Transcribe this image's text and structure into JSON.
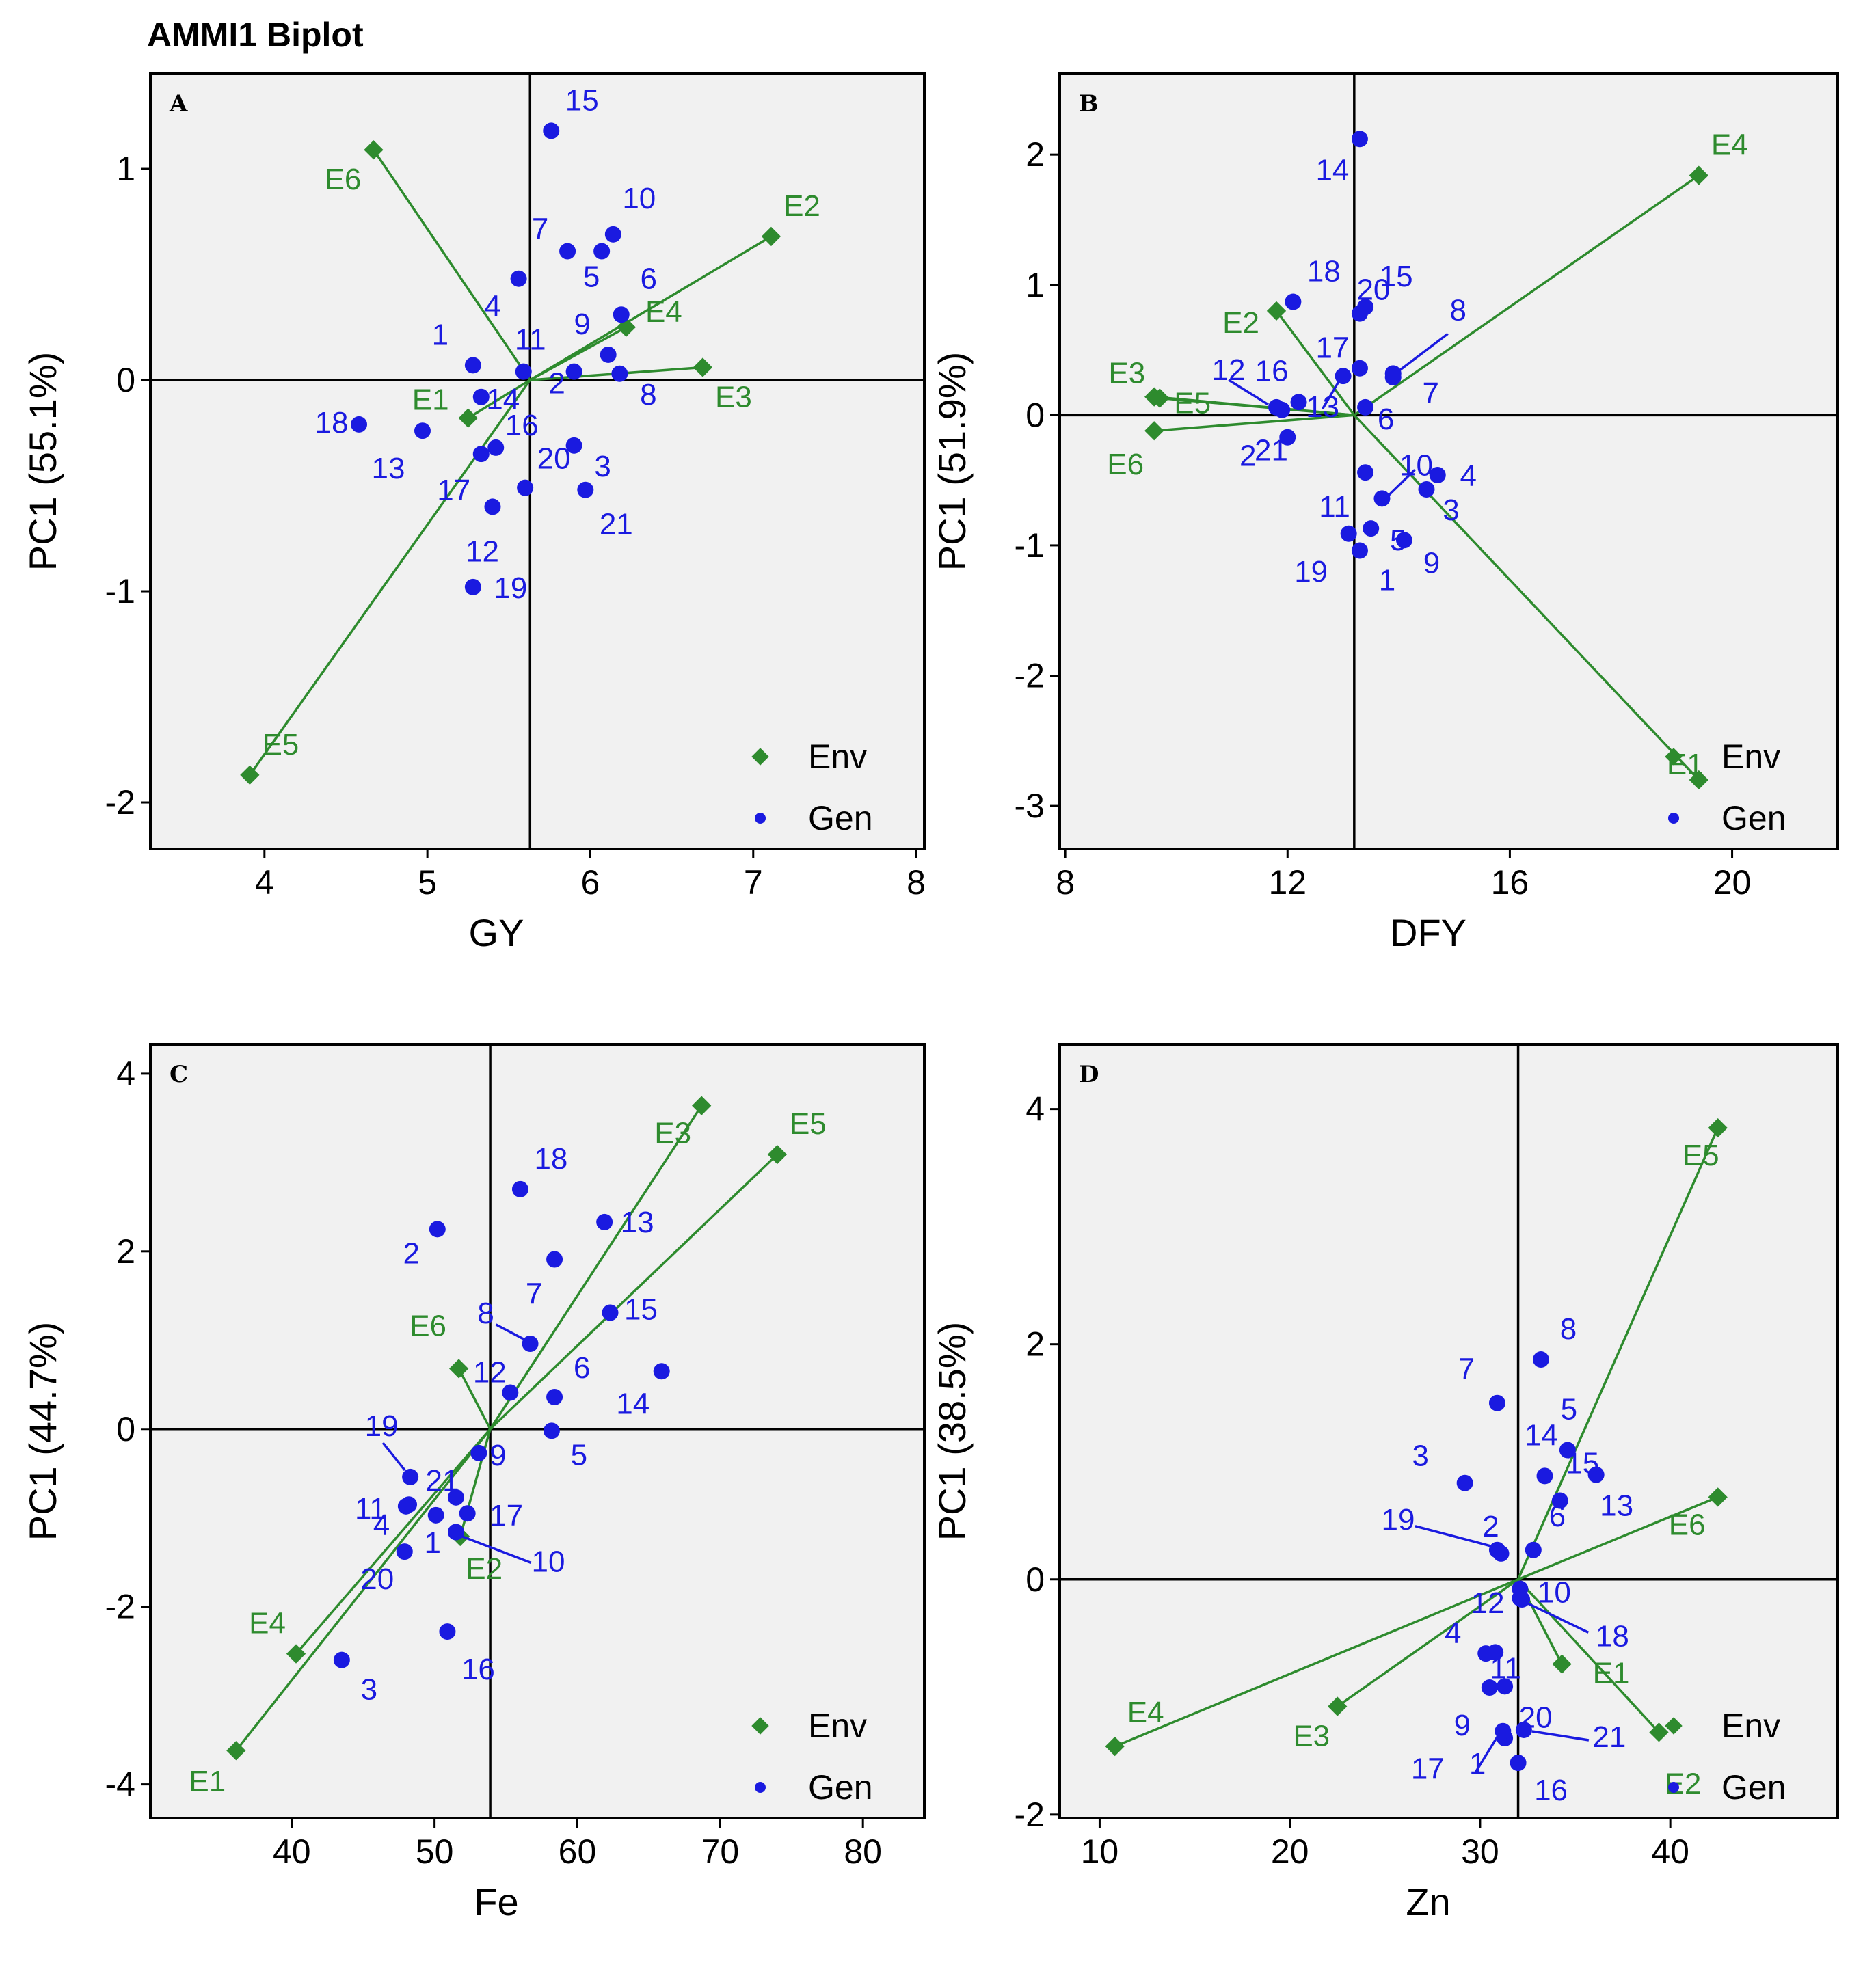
{
  "figure_title": "AMMI1 Biplot",
  "colors": {
    "env": "#2e8b2e",
    "gen": "#1a1ae0",
    "panel_background": "#f1f1f1"
  },
  "chart_data": [
    {
      "type": "scatter",
      "panel": "A",
      "xlabel": "GY",
      "ylabel": "PC1 (55.1%)",
      "xlim": [
        3.3,
        8.05
      ],
      "ylim": [
        -2.22,
        1.45
      ],
      "xticks": [
        4,
        5,
        6,
        7,
        8
      ],
      "yticks": [
        1,
        0,
        -1,
        -2
      ],
      "vline": 5.63,
      "hline": 0,
      "legend": [
        "Env",
        "Gen"
      ],
      "legend_position": "bottom-right",
      "env": [
        {
          "label": "E1",
          "x": 5.25,
          "y": -0.18
        },
        {
          "label": "E2",
          "x": 7.11,
          "y": 0.68
        },
        {
          "label": "E3",
          "x": 6.69,
          "y": 0.06
        },
        {
          "label": "E4",
          "x": 6.22,
          "y": 0.25
        },
        {
          "label": "E5",
          "x": 3.91,
          "y": -1.87
        },
        {
          "label": "E6",
          "x": 4.67,
          "y": 1.09
        }
      ],
      "gen": [
        {
          "label": "1",
          "x": 5.28,
          "y": 0.07
        },
        {
          "label": "2",
          "x": 5.9,
          "y": 0.04
        },
        {
          "label": "3",
          "x": 5.9,
          "y": -0.31
        },
        {
          "label": "4",
          "x": 5.56,
          "y": 0.48
        },
        {
          "label": "5",
          "x": 6.07,
          "y": 0.61
        },
        {
          "label": "6",
          "x": 6.19,
          "y": 0.31
        },
        {
          "label": "7",
          "x": 5.86,
          "y": 0.61
        },
        {
          "label": "8",
          "x": 6.18,
          "y": 0.03
        },
        {
          "label": "9",
          "x": 6.11,
          "y": 0.12
        },
        {
          "label": "10",
          "x": 6.14,
          "y": 0.69
        },
        {
          "label": "11",
          "x": 5.59,
          "y": 0.04
        },
        {
          "label": "12",
          "x": 5.4,
          "y": -0.6
        },
        {
          "label": "13",
          "x": 4.97,
          "y": -0.24
        },
        {
          "label": "14",
          "x": 5.33,
          "y": -0.08
        },
        {
          "label": "15",
          "x": 5.76,
          "y": 1.18
        },
        {
          "label": "16",
          "x": 5.42,
          "y": -0.32
        },
        {
          "label": "17",
          "x": 5.33,
          "y": -0.35
        },
        {
          "label": "18",
          "x": 4.58,
          "y": -0.21
        },
        {
          "label": "19",
          "x": 5.28,
          "y": -0.98
        },
        {
          "label": "20",
          "x": 5.6,
          "y": -0.51
        },
        {
          "label": "21",
          "x": 5.97,
          "y": -0.52
        }
      ]
    },
    {
      "type": "scatter",
      "panel": "B",
      "xlabel": "DFY",
      "ylabel": "PC1 (51.9%)",
      "xlim": [
        7.9,
        21.9
      ],
      "ylim": [
        -3.33,
        2.62
      ],
      "xticks": [
        8,
        12,
        16,
        20
      ],
      "yticks": [
        2,
        1,
        0,
        -1,
        -2,
        -3
      ],
      "vline": 13.2,
      "hline": 0,
      "legend": [
        "Env",
        "Gen"
      ],
      "legend_position": "bottom-right",
      "env": [
        {
          "label": "E1",
          "x": 19.4,
          "y": -2.8
        },
        {
          "label": "E2",
          "x": 11.8,
          "y": 0.8
        },
        {
          "label": "E3",
          "x": 9.7,
          "y": 0.13
        },
        {
          "label": "E4",
          "x": 19.4,
          "y": 1.84
        },
        {
          "label": "E5",
          "x": 9.6,
          "y": 0.14
        },
        {
          "label": "E6",
          "x": 9.6,
          "y": -0.12
        }
      ],
      "gen": [
        {
          "label": "1",
          "x": 13.3,
          "y": -1.04
        },
        {
          "label": "2",
          "x": 12.0,
          "y": -0.17
        },
        {
          "label": "3",
          "x": 14.5,
          "y": -0.57
        },
        {
          "label": "4",
          "x": 14.7,
          "y": -0.46
        },
        {
          "label": "5",
          "x": 13.5,
          "y": -0.87
        },
        {
          "label": "6",
          "x": 13.4,
          "y": 0.06
        },
        {
          "label": "7",
          "x": 13.9,
          "y": 0.29
        },
        {
          "label": "8",
          "x": 13.9,
          "y": 0.32
        },
        {
          "label": "9",
          "x": 14.1,
          "y": -0.96
        },
        {
          "label": "10",
          "x": 13.7,
          "y": -0.64
        },
        {
          "label": "11",
          "x": 13.4,
          "y": -0.44
        },
        {
          "label": "12",
          "x": 11.8,
          "y": 0.06
        },
        {
          "label": "13",
          "x": 13.0,
          "y": 0.3
        },
        {
          "label": "14",
          "x": 13.3,
          "y": 2.12
        },
        {
          "label": "15",
          "x": 13.4,
          "y": 0.83
        },
        {
          "label": "16",
          "x": 11.9,
          "y": 0.04
        },
        {
          "label": "17",
          "x": 13.3,
          "y": 0.36
        },
        {
          "label": "18",
          "x": 12.1,
          "y": 0.87
        },
        {
          "label": "19",
          "x": 13.1,
          "y": -0.91
        },
        {
          "label": "20",
          "x": 13.3,
          "y": 0.78
        },
        {
          "label": "21",
          "x": 12.2,
          "y": 0.1
        }
      ]
    },
    {
      "type": "scatter",
      "panel": "C",
      "xlabel": "Fe",
      "ylabel": "PC1 (44.7%)",
      "xlim": [
        30.1,
        84.3
      ],
      "ylim": [
        -4.38,
        4.33
      ],
      "xticks": [
        40,
        50,
        60,
        70,
        80
      ],
      "yticks": [
        4,
        2,
        0,
        -2,
        -4
      ],
      "vline": 53.9,
      "hline": 0,
      "legend": [
        "Env",
        "Gen"
      ],
      "legend_position": "bottom-right",
      "env": [
        {
          "label": "E1",
          "x": 36.1,
          "y": -3.62
        },
        {
          "label": "E2",
          "x": 51.8,
          "y": -1.21
        },
        {
          "label": "E3",
          "x": 68.7,
          "y": 3.64
        },
        {
          "label": "E4",
          "x": 40.3,
          "y": -2.53
        },
        {
          "label": "E5",
          "x": 74.0,
          "y": 3.09
        },
        {
          "label": "E6",
          "x": 51.7,
          "y": 0.68
        }
      ],
      "gen": [
        {
          "label": "1",
          "x": 50.1,
          "y": -0.97
        },
        {
          "label": "2",
          "x": 50.2,
          "y": 2.25
        },
        {
          "label": "3",
          "x": 43.5,
          "y": -2.6
        },
        {
          "label": "4",
          "x": 48.2,
          "y": -0.85
        },
        {
          "label": "5",
          "x": 58.2,
          "y": -0.02
        },
        {
          "label": "6",
          "x": 58.4,
          "y": 0.36
        },
        {
          "label": "7",
          "x": 58.4,
          "y": 1.91
        },
        {
          "label": "8",
          "x": 56.7,
          "y": 0.96
        },
        {
          "label": "9",
          "x": 53.1,
          "y": -0.27
        },
        {
          "label": "10",
          "x": 51.5,
          "y": -1.16
        },
        {
          "label": "11",
          "x": 48.0,
          "y": -0.87
        },
        {
          "label": "12",
          "x": 55.3,
          "y": 0.41
        },
        {
          "label": "13",
          "x": 61.9,
          "y": 2.33
        },
        {
          "label": "14",
          "x": 65.9,
          "y": 0.65
        },
        {
          "label": "15",
          "x": 62.3,
          "y": 1.31
        },
        {
          "label": "16",
          "x": 50.9,
          "y": -2.28
        },
        {
          "label": "17",
          "x": 52.3,
          "y": -0.95
        },
        {
          "label": "18",
          "x": 56.0,
          "y": 2.7
        },
        {
          "label": "19",
          "x": 48.3,
          "y": -0.54
        },
        {
          "label": "20",
          "x": 47.9,
          "y": -1.38
        },
        {
          "label": "21",
          "x": 51.5,
          "y": -0.77
        }
      ]
    },
    {
      "type": "scatter",
      "panel": "D",
      "xlabel": "Zn",
      "ylabel": "PC1 (38.5%)",
      "xlim": [
        7.9,
        48.8
      ],
      "ylim": [
        -2.03,
        4.55
      ],
      "xticks": [
        10,
        20,
        30,
        40
      ],
      "yticks": [
        4,
        2,
        0,
        -2
      ],
      "vline": 32.0,
      "hline": 0,
      "legend": [
        "Env",
        "Gen"
      ],
      "legend_position": "bottom-right",
      "env": [
        {
          "label": "E1",
          "x": 34.3,
          "y": -0.72
        },
        {
          "label": "E2",
          "x": 39.4,
          "y": -1.3
        },
        {
          "label": "E3",
          "x": 22.5,
          "y": -1.08
        },
        {
          "label": "E4",
          "x": 10.8,
          "y": -1.42
        },
        {
          "label": "E5",
          "x": 42.5,
          "y": 3.84
        },
        {
          "label": "E6",
          "x": 42.5,
          "y": 0.7
        }
      ],
      "gen": [
        {
          "label": "1",
          "x": 31.3,
          "y": -1.35
        },
        {
          "label": "2",
          "x": 31.1,
          "y": 0.22
        },
        {
          "label": "3",
          "x": 29.2,
          "y": 0.82
        },
        {
          "label": "4",
          "x": 30.3,
          "y": -0.63
        },
        {
          "label": "5",
          "x": 34.6,
          "y": 1.1
        },
        {
          "label": "6",
          "x": 32.8,
          "y": 0.25
        },
        {
          "label": "7",
          "x": 30.9,
          "y": 1.5
        },
        {
          "label": "8",
          "x": 33.2,
          "y": 1.87
        },
        {
          "label": "9",
          "x": 30.5,
          "y": -0.92
        },
        {
          "label": "10",
          "x": 32.1,
          "y": -0.08
        },
        {
          "label": "11",
          "x": 30.8,
          "y": -0.62
        },
        {
          "label": "12",
          "x": 32.2,
          "y": -0.17
        },
        {
          "label": "13",
          "x": 36.1,
          "y": 0.89
        },
        {
          "label": "14",
          "x": 33.4,
          "y": 0.88
        },
        {
          "label": "15",
          "x": 34.2,
          "y": 0.67
        },
        {
          "label": "16",
          "x": 32.0,
          "y": -1.56
        },
        {
          "label": "17",
          "x": 31.2,
          "y": -1.29
        },
        {
          "label": "18",
          "x": 32.1,
          "y": -0.16
        },
        {
          "label": "19",
          "x": 30.9,
          "y": 0.25
        },
        {
          "label": "20",
          "x": 31.3,
          "y": -0.91
        },
        {
          "label": "21",
          "x": 32.3,
          "y": -1.28
        }
      ]
    }
  ]
}
